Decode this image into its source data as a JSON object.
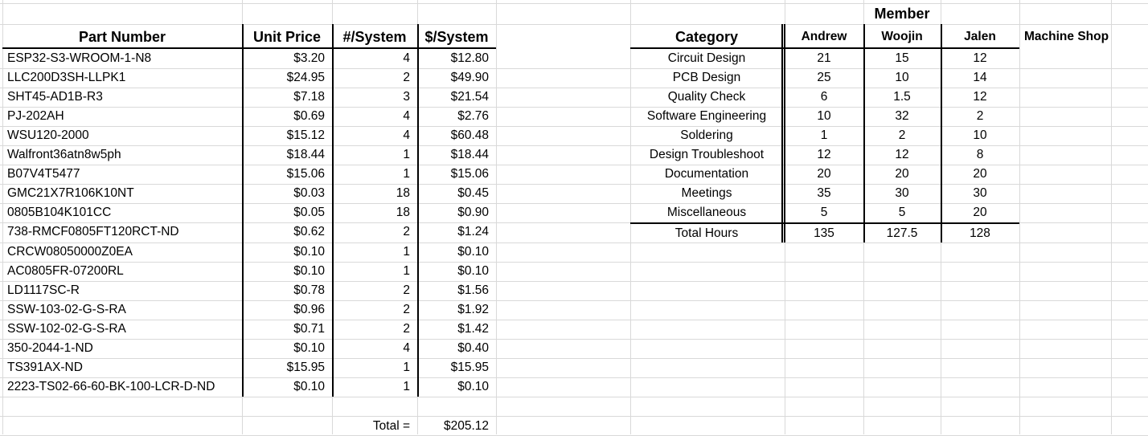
{
  "parts": {
    "headers": [
      "Part Number",
      "Unit Price",
      "#/System",
      "$/System"
    ],
    "rows": [
      [
        "ESP32-S3-WROOM-1-N8",
        "$3.20",
        "4",
        "$12.80"
      ],
      [
        "LLC200D3SH-LLPK1",
        "$24.95",
        "2",
        "$49.90"
      ],
      [
        "SHT45-AD1B-R3",
        "$7.18",
        "3",
        "$21.54"
      ],
      [
        "PJ-202AH",
        "$0.69",
        "4",
        "$2.76"
      ],
      [
        "WSU120-2000",
        "$15.12",
        "4",
        "$60.48"
      ],
      [
        "Walfront36atn8w5ph",
        "$18.44",
        "1",
        "$18.44"
      ],
      [
        "B07V4T5477",
        "$15.06",
        "1",
        "$15.06"
      ],
      [
        "GMC21X7R106K10NT",
        "$0.03",
        "18",
        "$0.45"
      ],
      [
        "0805B104K101CC",
        "$0.05",
        "18",
        "$0.90"
      ],
      [
        "738-RMCF0805FT120RCT-ND",
        "$0.62",
        "2",
        "$1.24"
      ],
      [
        "CRCW08050000Z0EA",
        "$0.10",
        "1",
        "$0.10"
      ],
      [
        "AC0805FR-07200RL",
        "$0.10",
        "1",
        "$0.10"
      ],
      [
        "LD1117SC-R",
        "$0.78",
        "2",
        "$1.56"
      ],
      [
        "SSW-103-02-G-S-RA",
        "$0.96",
        "2",
        "$1.92"
      ],
      [
        "SSW-102-02-G-S-RA",
        "$0.71",
        "2",
        "$1.42"
      ],
      [
        "350-2044-1-ND",
        "$0.10",
        "4",
        "$0.40"
      ],
      [
        "TS391AX-ND",
        "$15.95",
        "1",
        "$15.95"
      ],
      [
        "2223-TS02-66-60-BK-100-LCR-D-ND",
        "$0.10",
        "1",
        "$0.10"
      ]
    ],
    "total_label": "Total =",
    "total_value": "$205.12"
  },
  "hours": {
    "group_header": "Member",
    "headers": [
      "Category",
      "Andrew",
      "Woojin",
      "Jalen",
      "Machine Shop"
    ],
    "rows": [
      [
        "Circuit Design",
        "21",
        "15",
        "12"
      ],
      [
        "PCB Design",
        "25",
        "10",
        "14"
      ],
      [
        "Quality Check",
        "6",
        "1.5",
        "12"
      ],
      [
        "Software Engineering",
        "10",
        "32",
        "2"
      ],
      [
        "Soldering",
        "1",
        "2",
        "10"
      ],
      [
        "Design Troubleshoot",
        "12",
        "12",
        "8"
      ],
      [
        "Documentation",
        "20",
        "20",
        "20"
      ],
      [
        "Meetings",
        "35",
        "30",
        "30"
      ],
      [
        "Miscellaneous",
        "5",
        "5",
        "20"
      ]
    ],
    "total_row": [
      "Total Hours",
      "135",
      "127.5",
      "128"
    ]
  }
}
